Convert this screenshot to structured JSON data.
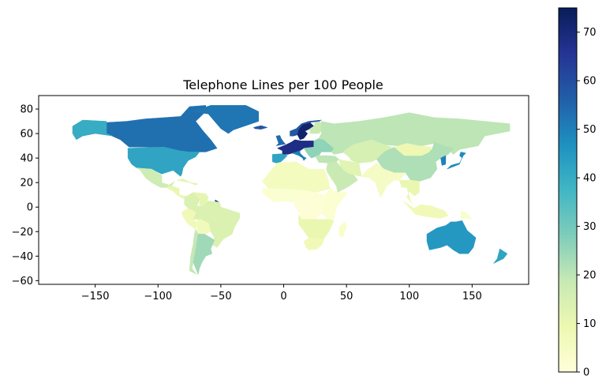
{
  "chart_data": {
    "type": "choropleth",
    "title": "Telephone Lines per 100 People",
    "xlim": [
      -195,
      195
    ],
    "ylim": [
      -63,
      91
    ],
    "x_ticks": [
      -150,
      -100,
      -50,
      0,
      50,
      100,
      150
    ],
    "y_ticks": [
      -60,
      -40,
      -20,
      0,
      20,
      40,
      60,
      80
    ],
    "colorbar": {
      "range": [
        0,
        75
      ],
      "ticks": [
        0,
        10,
        20,
        30,
        40,
        50,
        60,
        70
      ],
      "colormap": "YlGnBu",
      "stops": [
        "#ffffd9",
        "#edf8b1",
        "#c7e9b4",
        "#7fcdbb",
        "#41b6c4",
        "#1d91c0",
        "#225ea8",
        "#253494",
        "#081d58"
      ]
    },
    "regions": [
      {
        "name": "Canada",
        "value": 53
      },
      {
        "name": "Alaska",
        "value": 40
      },
      {
        "name": "Greenland",
        "value": 52
      },
      {
        "name": "United States",
        "value": 42
      },
      {
        "name": "Mexico",
        "value": 17
      },
      {
        "name": "Central America",
        "value": 10
      },
      {
        "name": "Caribbean",
        "value": 12
      },
      {
        "name": "Colombia",
        "value": 14
      },
      {
        "name": "Venezuela",
        "value": 11
      },
      {
        "name": "French Guiana",
        "value": 72
      },
      {
        "name": "Brazil",
        "value": 14
      },
      {
        "name": "Peru",
        "value": 8
      },
      {
        "name": "Bolivia",
        "value": 7
      },
      {
        "name": "Chile",
        "value": 19
      },
      {
        "name": "Argentina",
        "value": 24
      },
      {
        "name": "Iceland",
        "value": 58
      },
      {
        "name": "United Kingdom",
        "value": 54
      },
      {
        "name": "Norway",
        "value": 58
      },
      {
        "name": "Sweden",
        "value": 72
      },
      {
        "name": "Finland",
        "value": 18
      },
      {
        "name": "France / Central Europe",
        "value": 68
      },
      {
        "name": "Spain",
        "value": 42
      },
      {
        "name": "Italy",
        "value": 50
      },
      {
        "name": "Eastern Europe",
        "value": 26
      },
      {
        "name": "Russia",
        "value": 20
      },
      {
        "name": "Turkey",
        "value": 20
      },
      {
        "name": "Kazakhstan / Central Asia",
        "value": 15
      },
      {
        "name": "China",
        "value": 22
      },
      {
        "name": "Mongolia",
        "value": 9
      },
      {
        "name": "Japan",
        "value": 48
      },
      {
        "name": "Korea",
        "value": 50
      },
      {
        "name": "Middle East",
        "value": 18
      },
      {
        "name": "Iran",
        "value": 12
      },
      {
        "name": "India",
        "value": 5
      },
      {
        "name": "Southeast Asia",
        "value": 10
      },
      {
        "name": "Indonesia",
        "value": 8
      },
      {
        "name": "North Africa",
        "value": 6
      },
      {
        "name": "West Africa",
        "value": 2
      },
      {
        "name": "Central Africa",
        "value": 1
      },
      {
        "name": "East Africa",
        "value": 2
      },
      {
        "name": "Southern Africa",
        "value": 10
      },
      {
        "name": "South Africa",
        "value": 8
      },
      {
        "name": "Madagascar",
        "value": 3
      },
      {
        "name": "Australia",
        "value": 45
      },
      {
        "name": "New Zealand",
        "value": 42
      },
      {
        "name": "Papua New Guinea",
        "value": 3
      }
    ]
  }
}
